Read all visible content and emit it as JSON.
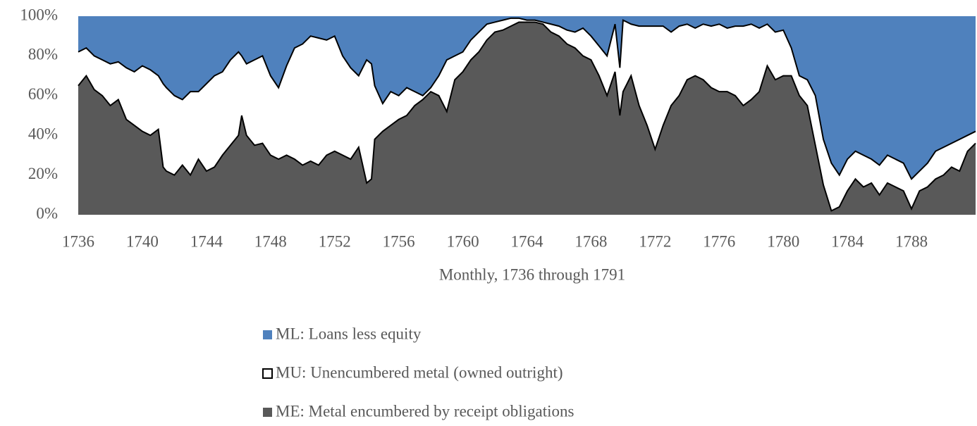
{
  "chart_data": {
    "type": "stacked-area",
    "x_label": "Monthly, 1736 through 1791",
    "x": [
      1736,
      1736.5,
      1737,
      1737.5,
      1738,
      1738.5,
      1739,
      1739.5,
      1740,
      1740.5,
      1741,
      1741.3,
      1741.5,
      1742,
      1742.5,
      1743,
      1743.5,
      1744,
      1744.5,
      1745,
      1745.5,
      1746,
      1746.2,
      1746.5,
      1747,
      1747.5,
      1748,
      1748.5,
      1749,
      1749.5,
      1750,
      1750.5,
      1751,
      1751.5,
      1752,
      1752.5,
      1753,
      1753.5,
      1754,
      1754.3,
      1754.5,
      1755,
      1755.5,
      1756,
      1756.5,
      1757,
      1757.5,
      1758,
      1758.5,
      1759,
      1759.5,
      1760,
      1760.5,
      1761,
      1761.5,
      1762,
      1762.5,
      1763,
      1763.5,
      1764,
      1764.5,
      1765,
      1765.5,
      1766,
      1766.5,
      1767,
      1767.5,
      1768,
      1768.5,
      1769,
      1769.5,
      1769.8,
      1770,
      1770.5,
      1771,
      1771.5,
      1772,
      1772.5,
      1773,
      1773.5,
      1774,
      1774.5,
      1775,
      1775.5,
      1776,
      1776.5,
      1777,
      1777.5,
      1778,
      1778.5,
      1779,
      1779.5,
      1780,
      1780.5,
      1781,
      1781.5,
      1782,
      1782.5,
      1783,
      1783.5,
      1784,
      1784.5,
      1785,
      1785.5,
      1786,
      1786.5,
      1787,
      1787.5,
      1788,
      1788.5,
      1789,
      1789.5,
      1790,
      1790.5,
      1791,
      1791.5,
      1792
    ],
    "series": [
      {
        "name": "ML: Loans less equity",
        "color": "#4f81bd",
        "values": [
          18,
          16,
          20,
          22,
          24,
          23,
          26,
          28,
          25,
          27,
          30,
          34,
          36,
          40,
          42,
          38,
          38,
          34,
          30,
          28,
          22,
          18,
          20,
          24,
          22,
          20,
          30,
          36,
          25,
          16,
          14,
          10,
          11,
          12,
          10,
          20,
          26,
          30,
          22,
          24,
          35,
          44,
          38,
          40,
          36,
          38,
          40,
          36,
          30,
          22,
          20,
          18,
          12,
          8,
          4,
          3,
          2,
          1,
          1,
          2,
          2,
          3,
          4,
          5,
          7,
          8,
          6,
          10,
          15,
          20,
          4,
          26,
          2,
          4,
          5,
          5,
          5,
          5,
          8,
          5,
          4,
          6,
          4,
          5,
          4,
          6,
          5,
          5,
          4,
          6,
          4,
          8,
          7,
          16,
          30,
          32,
          40,
          62,
          74,
          80,
          72,
          68,
          70,
          72,
          75,
          70,
          72,
          74,
          82,
          78,
          74,
          68,
          66,
          64,
          62,
          60,
          58
        ]
      },
      {
        "name": "MU: Unencumbered metal (owned outright)",
        "color": "#ffffff",
        "values": [
          17,
          14,
          17,
          18,
          21,
          19,
          26,
          27,
          33,
          33,
          27,
          42,
          42,
          40,
          33,
          42,
          34,
          44,
          46,
          42,
          43,
          42,
          30,
          36,
          43,
          44,
          40,
          36,
          45,
          56,
          61,
          63,
          64,
          58,
          58,
          50,
          46,
          36,
          62,
          58,
          27,
          14,
          17,
          12,
          14,
          7,
          2,
          2,
          10,
          26,
          12,
          10,
          10,
          10,
          8,
          5,
          5,
          4,
          2,
          1,
          1,
          1,
          4,
          5,
          7,
          8,
          14,
          12,
          15,
          20,
          24,
          24,
          36,
          26,
          40,
          50,
          62,
          50,
          37,
          35,
          28,
          24,
          28,
          31,
          34,
          32,
          35,
          40,
          38,
          32,
          21,
          24,
          23,
          14,
          10,
          13,
          25,
          23,
          24,
          16,
          16,
          14,
          16,
          12,
          15,
          14,
          14,
          14,
          15,
          10,
          12,
          14,
          14,
          12,
          16,
          8,
          6
        ]
      },
      {
        "name": "ME: Metal encumbered by receipt obligations",
        "color": "#595959",
        "values": [
          65,
          70,
          63,
          60,
          55,
          58,
          48,
          45,
          42,
          40,
          43,
          24,
          22,
          20,
          25,
          20,
          28,
          22,
          24,
          30,
          35,
          40,
          50,
          40,
          35,
          36,
          30,
          28,
          30,
          28,
          25,
          27,
          25,
          30,
          32,
          30,
          28,
          34,
          16,
          18,
          38,
          42,
          45,
          48,
          50,
          55,
          58,
          62,
          60,
          52,
          68,
          72,
          78,
          82,
          88,
          92,
          93,
          95,
          97,
          97,
          97,
          96,
          92,
          90,
          86,
          84,
          80,
          78,
          70,
          60,
          72,
          50,
          62,
          70,
          55,
          45,
          33,
          45,
          55,
          60,
          68,
          70,
          68,
          64,
          62,
          62,
          60,
          55,
          58,
          62,
          75,
          68,
          70,
          70,
          60,
          55,
          35,
          15,
          2,
          4,
          12,
          18,
          14,
          16,
          10,
          16,
          14,
          12,
          3,
          12,
          14,
          18,
          20,
          24,
          22,
          32,
          36
        ]
      }
    ],
    "xlim": [
      1736,
      1792
    ],
    "xticks": [
      1736,
      1740,
      1744,
      1748,
      1752,
      1756,
      1760,
      1764,
      1768,
      1772,
      1776,
      1780,
      1784,
      1788
    ],
    "ylim": [
      0,
      100
    ],
    "yticks": [
      {
        "value": 0,
        "label": "0%"
      },
      {
        "value": 20,
        "label": "20%"
      },
      {
        "value": 40,
        "label": "40%"
      },
      {
        "value": 60,
        "label": "60%"
      },
      {
        "value": 80,
        "label": "80%"
      },
      {
        "value": 100,
        "label": "100%"
      }
    ],
    "legend": "bottom"
  }
}
